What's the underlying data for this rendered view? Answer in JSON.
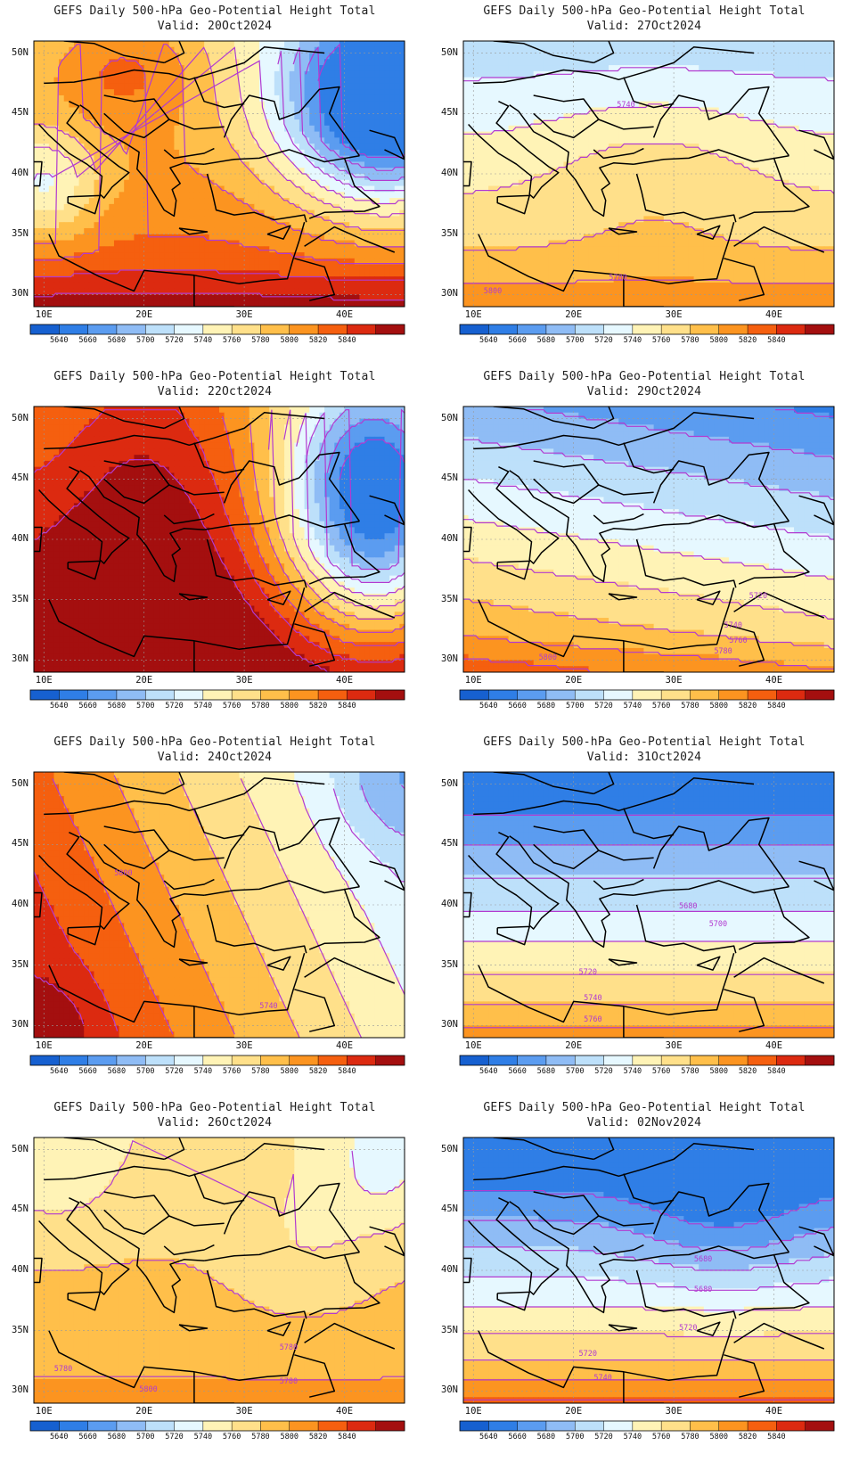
{
  "panels": [
    {
      "title": "GEFS Daily 500-hPa Geo-Potential Height Total",
      "valid": "Valid: 20Oct2024"
    },
    {
      "title": "GEFS Daily 500-hPa Geo-Potential Height Total",
      "valid": "Valid: 27Oct2024"
    },
    {
      "title": "GEFS Daily 500-hPa Geo-Potential Height Total",
      "valid": "Valid: 22Oct2024"
    },
    {
      "title": "GEFS Daily 500-hPa Geo-Potential Height Total",
      "valid": "Valid: 29Oct2024"
    },
    {
      "title": "GEFS Daily 500-hPa Geo-Potential Height Total",
      "valid": "Valid: 24Oct2024"
    },
    {
      "title": "GEFS Daily 500-hPa Geo-Potential Height Total",
      "valid": "Valid: 31Oct2024"
    },
    {
      "title": "GEFS Daily 500-hPa Geo-Potential Height Total",
      "valid": "Valid: 26Oct2024"
    },
    {
      "title": "GEFS Daily 500-hPa Geo-Potential Height Total",
      "valid": "Valid: 02Nov2024"
    }
  ],
  "lat_ticks": [
    "50N",
    "45N",
    "40N",
    "35N",
    "30N"
  ],
  "lon_ticks": [
    "10E",
    "20E",
    "30E",
    "40E"
  ],
  "colorbar": {
    "labels": [
      "5640",
      "5660",
      "5680",
      "5700",
      "5720",
      "5740",
      "5760",
      "5780",
      "5800",
      "5820",
      "5840"
    ],
    "colors": [
      "#1660d0",
      "#2f7ee6",
      "#5b9cf0",
      "#8fbcf5",
      "#bde0fa",
      "#e6f8ff",
      "#fff3b6",
      "#ffe08a",
      "#ffbf4a",
      "#fc9420",
      "#f55f0f",
      "#dc2a10",
      "#a40f0f"
    ]
  },
  "contour_color": "#b23ad0",
  "chart_data": {
    "type": "heatmap",
    "units": "gpm",
    "levels": [
      5640,
      5660,
      5680,
      5700,
      5720,
      5740,
      5760,
      5780,
      5800,
      5820,
      5840
    ],
    "lon_range": [
      9,
      46
    ],
    "lat_range": [
      29,
      51
    ],
    "fields": [
      {
        "valid": "20Oct2024",
        "pattern": [
          5740,
          5780,
          5800,
          5840,
          5640,
          5660
        ]
      },
      {
        "valid": "27Oct2024",
        "pattern": [
          5720,
          5740,
          5760,
          5780,
          5800,
          5820
        ]
      },
      {
        "valid": "22Oct2024",
        "pattern": [
          5820,
          5840,
          5800,
          5700,
          5640,
          5660
        ]
      },
      {
        "valid": "29Oct2024",
        "pattern": [
          5680,
          5700,
          5720,
          5740,
          5760,
          5800
        ]
      },
      {
        "valid": "24Oct2024",
        "pattern": [
          5800,
          5840,
          5780,
          5740,
          5720,
          5700
        ]
      },
      {
        "valid": "31Oct2024",
        "pattern": [
          5640,
          5660,
          5680,
          5700,
          5720,
          5760
        ]
      },
      {
        "valid": "26Oct2024",
        "pattern": [
          5720,
          5740,
          5760,
          5780,
          5800,
          5780
        ]
      },
      {
        "valid": "02Nov2024",
        "pattern": [
          5640,
          5660,
          5680,
          5700,
          5720,
          5760
        ]
      }
    ],
    "contour_labels": [
      [],
      [
        "5740",
        "5780",
        "5800"
      ],
      [],
      [
        "5720",
        "5740",
        "5760",
        "5780",
        "5800"
      ],
      [
        "5800",
        "5740"
      ],
      [
        "5680",
        "5700",
        "5720",
        "5740",
        "5760"
      ],
      [
        "5780",
        "5780",
        "5780",
        "5800"
      ],
      [
        "5680",
        "5680",
        "5720",
        "5720",
        "5740"
      ]
    ]
  }
}
